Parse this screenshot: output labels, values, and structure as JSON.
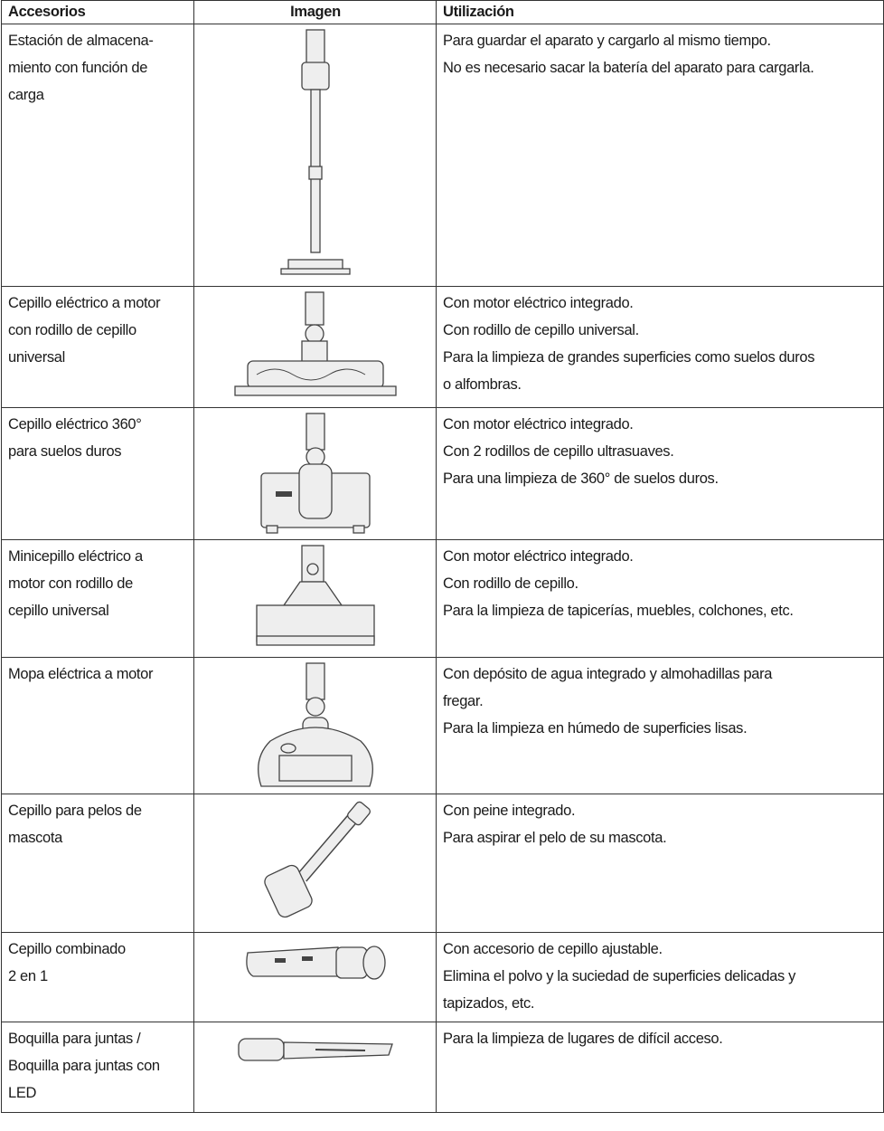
{
  "table": {
    "headers": [
      "Accesorios",
      "Imagen",
      "Utilización"
    ],
    "rows": [
      {
        "accessory": [
          "Estación de almacena-",
          "miento con función de",
          "carga"
        ],
        "usage": [
          "Para guardar el aparato y cargarlo al mismo tiempo.",
          "No es necesario sacar la batería del aparato para cargarla."
        ]
      },
      {
        "accessory": [
          "Cepillo eléctrico a motor",
          "con rodillo de cepillo",
          "universal"
        ],
        "usage": [
          "Con motor eléctrico integrado.",
          "Con rodillo de cepillo universal.",
          "Para la limpieza de grandes superficies como suelos duros",
          "o alfombras."
        ]
      },
      {
        "accessory": [
          "Cepillo eléctrico 360°",
          "para suelos duros"
        ],
        "usage": [
          "Con motor eléctrico integrado.",
          "Con 2 rodillos de cepillo ultrasuaves.",
          "Para una limpieza de 360° de suelos duros."
        ]
      },
      {
        "accessory": [
          "Minicepillo eléctrico a",
          "motor con rodillo de",
          "cepillo universal"
        ],
        "usage": [
          "Con motor eléctrico integrado.",
          "Con rodillo de cepillo.",
          "Para la limpieza de tapicerías, muebles, colchones, etc."
        ]
      },
      {
        "accessory": [
          "Mopa eléctrica a motor"
        ],
        "usage": [
          "Con depósito de agua integrado y almohadillas para",
          "fregar.",
          "Para la limpieza en húmedo de superficies lisas."
        ]
      },
      {
        "accessory": [
          "Cepillo para pelos de",
          "mascota"
        ],
        "usage": [
          "Con peine integrado.",
          "Para aspirar el pelo de su mascota."
        ]
      },
      {
        "accessory": [
          "Cepillo combinado",
          "2 en 1"
        ],
        "usage": [
          "Con accesorio de cepillo ajustable.",
          "Elimina el polvo y la suciedad de superficies delicadas y",
          "tapizados, etc."
        ]
      },
      {
        "accessory": [
          "Boquilla para juntas /",
          "Boquilla para juntas con",
          "LED"
        ],
        "usage": [
          "Para la limpieza de lugares de difícil acceso."
        ]
      }
    ]
  }
}
